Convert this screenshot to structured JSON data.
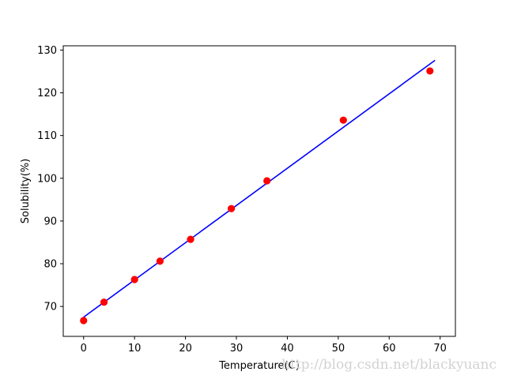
{
  "chart_data": {
    "type": "scatter",
    "xlabel": "Temperature(C)",
    "ylabel": "Solubility(%)",
    "xlim": [
      -4,
      73
    ],
    "ylim": [
      63,
      131
    ],
    "xticks": [
      0,
      10,
      20,
      30,
      40,
      50,
      60,
      70
    ],
    "yticks": [
      70,
      80,
      90,
      100,
      110,
      120,
      130
    ],
    "grid": false,
    "series": [
      {
        "kind": "scatter",
        "color": "#ff0000",
        "x": [
          0,
          4,
          10,
          15,
          21,
          29,
          36,
          51,
          68
        ],
        "y": [
          66.7,
          71.0,
          76.3,
          80.6,
          85.7,
          92.9,
          99.4,
          113.6,
          125.1
        ]
      },
      {
        "kind": "line",
        "color": "#0000ff",
        "x": [
          0,
          69
        ],
        "y": [
          67.5,
          127.6
        ]
      }
    ]
  },
  "watermark": "http://blog.csdn.net/blackyuanc"
}
